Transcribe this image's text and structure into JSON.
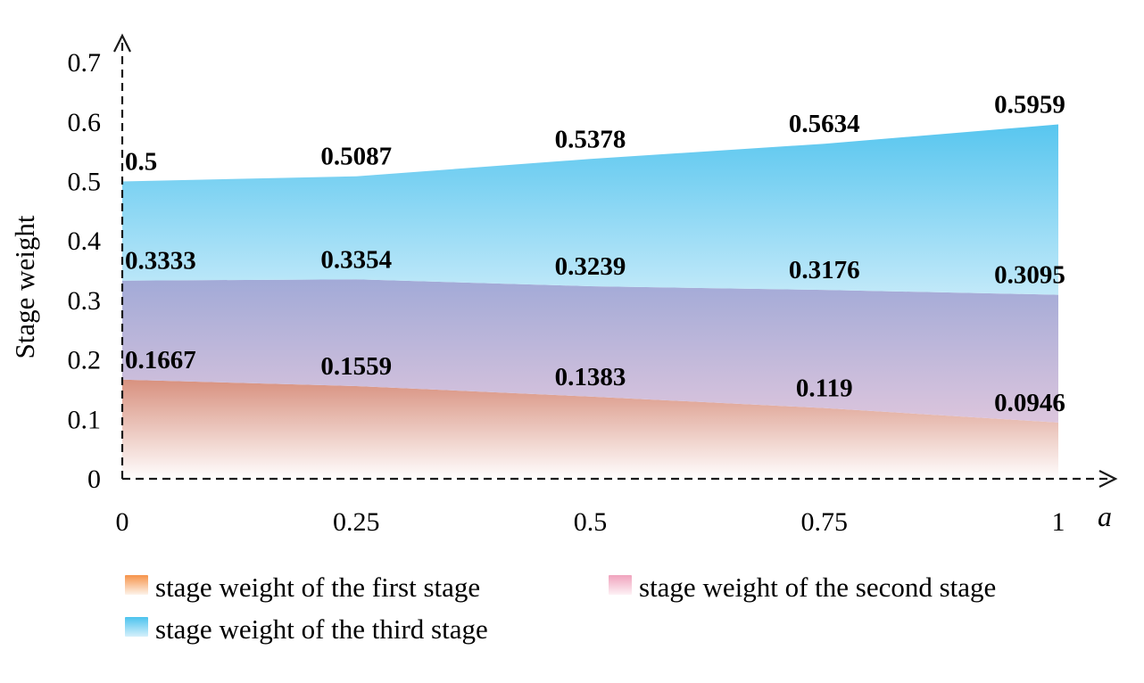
{
  "chart_data": {
    "type": "area",
    "title": "",
    "xlabel": "a",
    "ylabel": "Stage weight",
    "x": [
      0,
      0.25,
      0.5,
      0.75,
      1
    ],
    "x_tick_labels": [
      "0",
      "0.25",
      "0.5",
      "0.75",
      "1"
    ],
    "y_ticks": [
      0,
      0.1,
      0.2,
      0.3,
      0.4,
      0.5,
      0.6,
      0.7
    ],
    "y_tick_labels": [
      "0",
      "0.1",
      "0.2",
      "0.3",
      "0.4",
      "0.5",
      "0.6",
      "0.7"
    ],
    "xlim": [
      0,
      1
    ],
    "ylim": [
      0,
      0.7
    ],
    "grid": false,
    "axis_style": "dashed-with-arrows",
    "legend_position": "bottom",
    "label_color": "#000000",
    "axis_color": "#1a1a1a",
    "series": [
      {
        "name": "stage weight of the first stage",
        "values": [
          0.1667,
          0.1559,
          0.1383,
          0.119,
          0.0946
        ],
        "point_labels": [
          "0.1667",
          "0.1559",
          "0.1383",
          "0.119",
          "0.0946"
        ],
        "fill_top": "#d8917f",
        "fill_bottom": "#fffdfd",
        "legend_top": "#f6934a",
        "legend_bottom": "#fdf3ea"
      },
      {
        "name": "stage weight of the second stage",
        "values": [
          0.3333,
          0.3354,
          0.3239,
          0.3176,
          0.3095
        ],
        "point_labels": [
          "0.3333",
          "0.3354",
          "0.3239",
          "0.3176",
          "0.3095"
        ],
        "fill_top": "#a2aad7",
        "fill_bottom": "#dcc5dd",
        "legend_top": "#f0a3bd",
        "legend_bottom": "#fdf1f5"
      },
      {
        "name": "stage weight of the third stage",
        "values": [
          0.5,
          0.5087,
          0.5378,
          0.5634,
          0.5959
        ],
        "point_labels": [
          "0.5",
          "0.5087",
          "0.5378",
          "0.5634",
          "0.5959"
        ],
        "fill_top": "#58c6ef",
        "fill_bottom": "#c2e9f9",
        "legend_top": "#4cc3ee",
        "legend_bottom": "#d5f0fb"
      }
    ]
  }
}
